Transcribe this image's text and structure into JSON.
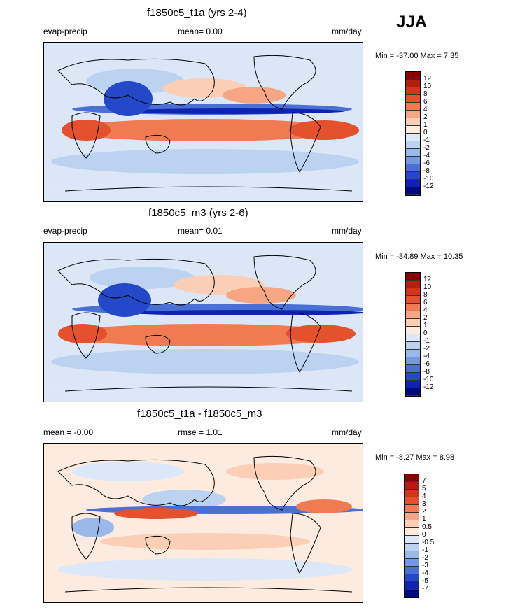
{
  "season": "JJA",
  "panels": [
    {
      "title": "f1850c5_t1a (yrs 2-4)",
      "left_label": "evap-precip",
      "center_label": "mean=   0.00",
      "right_label": "mm/day",
      "minmax": "Min = -37.00 Max =   7.35",
      "colorbar_labels": [
        "12",
        "10",
        "8",
        "6",
        "4",
        "2",
        "1",
        "0",
        "-1",
        "-2",
        "-4",
        "-6",
        "-8",
        "-10",
        "-12"
      ],
      "colorbar_colors": [
        "#8b0000",
        "#b2200d",
        "#d1351a",
        "#e5502d",
        "#f07a52",
        "#f6a682",
        "#fbcfb6",
        "#fdebe0",
        "#dce8f8",
        "#bcd2f1",
        "#9ab8ea",
        "#7698e0",
        "#4a70d6",
        "#2548c9",
        "#0e24b0",
        "#000a80"
      ],
      "mean_value": 0.0
    },
    {
      "title": "f1850c5_m3 (yrs 2-6)",
      "left_label": "evap-precip",
      "center_label": "mean=   0.01",
      "right_label": "mm/day",
      "minmax": "Min = -34.89 Max =  10.35",
      "colorbar_labels": [
        "12",
        "10",
        "8",
        "6",
        "4",
        "2",
        "1",
        "0",
        "-1",
        "-2",
        "-4",
        "-6",
        "-8",
        "-10",
        "-12"
      ],
      "colorbar_colors": [
        "#8b0000",
        "#b2200d",
        "#d1351a",
        "#e5502d",
        "#f07a52",
        "#f6a682",
        "#fbcfb6",
        "#fdebe0",
        "#dce8f8",
        "#bcd2f1",
        "#9ab8ea",
        "#7698e0",
        "#4a70d6",
        "#2548c9",
        "#0e24b0",
        "#000a80"
      ],
      "mean_value": 0.01
    },
    {
      "title": "f1850c5_t1a - f1850c5_m3",
      "left_label": "mean =  -0.00",
      "center_label": "rmse =   1.01",
      "right_label": "mm/day",
      "minmax": "Min =  -8.27 Max =   8.98",
      "colorbar_labels": [
        "7",
        "5",
        "4",
        "3",
        "2",
        "1",
        "0.5",
        "0",
        "-0.5",
        "-1",
        "-2",
        "-3",
        "-4",
        "-5",
        "-7"
      ],
      "colorbar_colors": [
        "#8b0000",
        "#b2200d",
        "#d1351a",
        "#e5502d",
        "#f07a52",
        "#f6a682",
        "#fbcfb6",
        "#fdebe0",
        "#dce8f8",
        "#bcd2f1",
        "#9ab8ea",
        "#7698e0",
        "#4a70d6",
        "#2548c9",
        "#0e24b0",
        "#000a80"
      ],
      "mean_value": -0.0,
      "rmse_value": 1.01
    }
  ]
}
